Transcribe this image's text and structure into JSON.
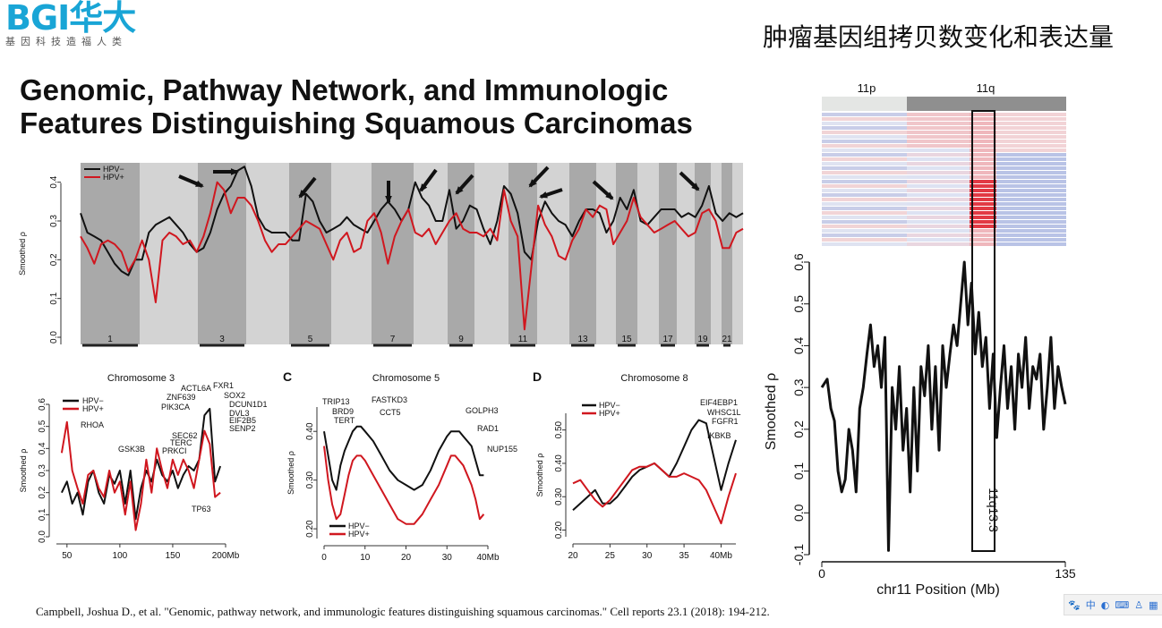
{
  "header": {
    "logo_text": "BGI华大",
    "logo_subtitle": "基因科技造福人类",
    "slide_title": "肿瘤基因组拷贝数变化和表达量"
  },
  "paper_title_line1": "Genomic, Pathway Network, and Immunologic",
  "paper_title_line2": "Features Distinguishing Squamous Carcinomas",
  "citation": "Campbell, Joshua D., et al. \"Genomic, pathway network, and immunologic features distinguishing squamous carcinomas.\" Cell reports 23.1 (2018): 194-212.",
  "tray_icons": [
    "paw-icon",
    "中",
    "moon-icon",
    "keyboard-icon",
    "shirt-icon",
    "person-icon",
    "grid-icon"
  ],
  "colors": {
    "hpv_neg": "#111111",
    "hpv_pos": "#d0171f",
    "band_dark": "#a9a9a9",
    "band_light": "#d3d3d3"
  },
  "chart_data": [
    {
      "type": "line",
      "panel": "A",
      "ylabel": "Smoothed ρ",
      "ylim": [
        0,
        0.45
      ],
      "yticks": [
        "0.0",
        "0.1",
        "0.2",
        "0.3",
        "0.4"
      ],
      "chromosome_labels": [
        "1",
        "3",
        "5",
        "7",
        "9",
        "11",
        "13",
        "15",
        "17",
        "19",
        "21"
      ],
      "legend": [
        "HPV−",
        "HPV+"
      ],
      "series": [
        {
          "name": "HPV−",
          "values": [
            0.32,
            0.27,
            0.26,
            0.25,
            0.22,
            0.19,
            0.17,
            0.16,
            0.2,
            0.2,
            0.27,
            0.29,
            0.3,
            0.31,
            0.29,
            0.27,
            0.24,
            0.22,
            0.23,
            0.27,
            0.33,
            0.37,
            0.39,
            0.43,
            0.44,
            0.39,
            0.31,
            0.28,
            0.27,
            0.27,
            0.27,
            0.25,
            0.25,
            0.37,
            0.35,
            0.3,
            0.27,
            0.28,
            0.29,
            0.31,
            0.29,
            0.28,
            0.27,
            0.3,
            0.33,
            0.35,
            0.33,
            0.3,
            0.33,
            0.4,
            0.36,
            0.34,
            0.3,
            0.3,
            0.38,
            0.28,
            0.3,
            0.34,
            0.33,
            0.28,
            0.24,
            0.3,
            0.39,
            0.37,
            0.32,
            0.22,
            0.2,
            0.3,
            0.35,
            0.32,
            0.3,
            0.29,
            0.26,
            0.3,
            0.33,
            0.33,
            0.32,
            0.27,
            0.3,
            0.36,
            0.33,
            0.38,
            0.3,
            0.29,
            0.31,
            0.33,
            0.33,
            0.33,
            0.31,
            0.32,
            0.31,
            0.34,
            0.39,
            0.32,
            0.3,
            0.32,
            0.31,
            0.32
          ]
        },
        {
          "name": "HPV+",
          "values": [
            0.26,
            0.23,
            0.19,
            0.24,
            0.25,
            0.24,
            0.22,
            0.17,
            0.2,
            0.25,
            0.2,
            0.09,
            0.25,
            0.27,
            0.26,
            0.24,
            0.25,
            0.22,
            0.26,
            0.32,
            0.4,
            0.38,
            0.32,
            0.36,
            0.36,
            0.34,
            0.3,
            0.25,
            0.22,
            0.24,
            0.24,
            0.26,
            0.28,
            0.3,
            0.29,
            0.28,
            0.24,
            0.2,
            0.25,
            0.27,
            0.22,
            0.23,
            0.3,
            0.32,
            0.27,
            0.19,
            0.26,
            0.3,
            0.33,
            0.27,
            0.26,
            0.28,
            0.24,
            0.27,
            0.3,
            0.32,
            0.28,
            0.27,
            0.27,
            0.26,
            0.28,
            0.25,
            0.38,
            0.3,
            0.26,
            0.02,
            0.18,
            0.34,
            0.29,
            0.26,
            0.21,
            0.2,
            0.25,
            0.28,
            0.33,
            0.31,
            0.34,
            0.33,
            0.24,
            0.27,
            0.3,
            0.36,
            0.31,
            0.29,
            0.27,
            0.28,
            0.29,
            0.3,
            0.28,
            0.26,
            0.27,
            0.32,
            0.33,
            0.3,
            0.23,
            0.23,
            0.27,
            0.28
          ]
        }
      ]
    },
    {
      "type": "line",
      "panel": "B",
      "title": "Chromosome 3",
      "ylabel": "Smoothed ρ",
      "ylim": [
        0,
        0.6
      ],
      "yticks": [
        "0.0",
        "0.1",
        "0.2",
        "0.3",
        "0.4",
        "0.5",
        "0.6"
      ],
      "xticks": [
        "50",
        "100",
        "150",
        "200Mb"
      ],
      "legend": [
        "HPV−",
        "HPV+"
      ],
      "annotations": [
        "RHOA",
        "GSK3B",
        "ACTL6A",
        "FXR1",
        "ZNF639",
        "SOX2",
        "PIK3CA",
        "DCUN1D1",
        "DVL3",
        "EIF2B5",
        "SENP2",
        "SEC62",
        "TERC",
        "PRKCI",
        "TP63"
      ],
      "series": [
        {
          "name": "HPV−",
          "x": [
            45,
            50,
            55,
            60,
            65,
            70,
            75,
            80,
            85,
            90,
            95,
            100,
            105,
            110,
            115,
            120,
            125,
            130,
            135,
            140,
            145,
            150,
            155,
            160,
            165,
            170,
            175,
            180,
            185,
            190,
            195
          ],
          "values": [
            0.2,
            0.25,
            0.15,
            0.2,
            0.1,
            0.25,
            0.3,
            0.2,
            0.15,
            0.28,
            0.24,
            0.3,
            0.15,
            0.3,
            0.08,
            0.22,
            0.3,
            0.25,
            0.35,
            0.28,
            0.25,
            0.3,
            0.22,
            0.28,
            0.32,
            0.3,
            0.35,
            0.55,
            0.58,
            0.25,
            0.32
          ]
        },
        {
          "name": "HPV+",
          "x": [
            45,
            50,
            55,
            60,
            65,
            70,
            75,
            80,
            85,
            90,
            95,
            100,
            105,
            110,
            115,
            120,
            125,
            130,
            135,
            140,
            145,
            150,
            155,
            160,
            165,
            170,
            175,
            180,
            185,
            190,
            195
          ],
          "values": [
            0.38,
            0.52,
            0.3,
            0.22,
            0.15,
            0.28,
            0.3,
            0.22,
            0.18,
            0.3,
            0.2,
            0.25,
            0.1,
            0.25,
            0.03,
            0.15,
            0.35,
            0.2,
            0.4,
            0.3,
            0.22,
            0.35,
            0.28,
            0.35,
            0.3,
            0.22,
            0.35,
            0.48,
            0.42,
            0.18,
            0.2
          ]
        }
      ]
    },
    {
      "type": "line",
      "panel": "C",
      "title": "Chromosome 5",
      "ylabel": "Smoothed ρ",
      "ylim": [
        0.18,
        0.45
      ],
      "yticks": [
        "0.20",
        "0.30",
        "0.40"
      ],
      "xticks": [
        "0",
        "10",
        "20",
        "30",
        "40Mb"
      ],
      "legend": [
        "HPV−",
        "HPV+"
      ],
      "annotations": [
        "TRIP13",
        "BRD9",
        "TERT",
        "FASTKD3",
        "CCT5",
        "GOLPH3",
        "RAD1",
        "NUP155"
      ],
      "series": [
        {
          "name": "HPV−",
          "x": [
            0,
            1,
            2,
            3,
            4,
            5,
            6,
            7,
            8,
            9,
            10,
            12,
            14,
            16,
            18,
            20,
            22,
            24,
            26,
            28,
            30,
            31,
            32,
            33,
            34,
            35,
            36,
            37,
            38,
            39
          ],
          "values": [
            0.4,
            0.35,
            0.3,
            0.28,
            0.33,
            0.36,
            0.38,
            0.4,
            0.41,
            0.41,
            0.4,
            0.38,
            0.35,
            0.32,
            0.3,
            0.29,
            0.28,
            0.29,
            0.32,
            0.36,
            0.39,
            0.4,
            0.4,
            0.4,
            0.39,
            0.38,
            0.37,
            0.34,
            0.31,
            0.31
          ]
        },
        {
          "name": "HPV+",
          "x": [
            0,
            1,
            2,
            3,
            4,
            5,
            6,
            7,
            8,
            9,
            10,
            12,
            14,
            16,
            18,
            20,
            22,
            24,
            26,
            28,
            30,
            31,
            32,
            33,
            34,
            35,
            36,
            37,
            38,
            39
          ],
          "values": [
            0.37,
            0.3,
            0.25,
            0.22,
            0.23,
            0.27,
            0.31,
            0.34,
            0.35,
            0.35,
            0.34,
            0.31,
            0.28,
            0.25,
            0.22,
            0.21,
            0.21,
            0.23,
            0.26,
            0.29,
            0.33,
            0.35,
            0.35,
            0.34,
            0.33,
            0.31,
            0.29,
            0.26,
            0.22,
            0.23
          ]
        }
      ]
    },
    {
      "type": "line",
      "panel": "D",
      "title": "Chromosome 8",
      "ylabel": "Smoothed ρ",
      "ylim": [
        0.18,
        0.55
      ],
      "yticks": [
        "0.20",
        "0.30",
        "0.40",
        "0.50"
      ],
      "xticks": [
        "20",
        "25",
        "30",
        "35",
        "40Mb"
      ],
      "legend": [
        "HPV−",
        "HPV+"
      ],
      "annotations": [
        "EIF4EBP1",
        "WHSC1L",
        "FGFR1",
        "IKBKB"
      ],
      "series": [
        {
          "name": "HPV−",
          "x": [
            20,
            21,
            22,
            23,
            24,
            25,
            26,
            27,
            28,
            29,
            30,
            31,
            32,
            33,
            34,
            35,
            36,
            37,
            38,
            39,
            40,
            41,
            42
          ],
          "values": [
            0.26,
            0.28,
            0.3,
            0.32,
            0.28,
            0.28,
            0.3,
            0.33,
            0.36,
            0.38,
            0.39,
            0.4,
            0.38,
            0.36,
            0.4,
            0.45,
            0.5,
            0.53,
            0.52,
            0.42,
            0.32,
            0.4,
            0.47
          ]
        },
        {
          "name": "HPV+",
          "x": [
            20,
            21,
            22,
            23,
            24,
            25,
            26,
            27,
            28,
            29,
            30,
            31,
            32,
            33,
            34,
            35,
            36,
            37,
            38,
            39,
            40,
            41,
            42
          ],
          "values": [
            0.34,
            0.35,
            0.32,
            0.29,
            0.27,
            0.29,
            0.32,
            0.35,
            0.38,
            0.39,
            0.39,
            0.4,
            0.38,
            0.36,
            0.36,
            0.37,
            0.36,
            0.35,
            0.32,
            0.27,
            0.22,
            0.3,
            0.37
          ]
        }
      ]
    },
    {
      "type": "line",
      "panel": "chr11",
      "ylabel": "Smoothed ρ",
      "xlabel": "chr11 Position (Mb)",
      "ylim": [
        -0.1,
        0.6
      ],
      "yticks": [
        "-0.1",
        "0.0",
        "0.1",
        "0.2",
        "0.3",
        "0.4",
        "0.5",
        "0.6"
      ],
      "xticks": [
        "0",
        "135"
      ],
      "arm_labels": [
        "11p",
        "11q"
      ],
      "band_label": "11q13.3",
      "series": [
        {
          "name": "chr11",
          "x": [
            0,
            3,
            5,
            7,
            9,
            11,
            13,
            15,
            17,
            19,
            21,
            23,
            25,
            27,
            29,
            31,
            33,
            35,
            37,
            39,
            41,
            43,
            45,
            47,
            49,
            51,
            53,
            55,
            57,
            59,
            61,
            63,
            65,
            67,
            69,
            71,
            73,
            75,
            77,
            79,
            81,
            83,
            85,
            87,
            89,
            91,
            93,
            95,
            97,
            99,
            101,
            103,
            105,
            107,
            109,
            111,
            113,
            115,
            117,
            119,
            121,
            123,
            125,
            127,
            129,
            131,
            133,
            135
          ],
          "values": [
            0.3,
            0.32,
            0.25,
            0.22,
            0.1,
            0.05,
            0.08,
            0.2,
            0.15,
            0.05,
            0.25,
            0.3,
            0.38,
            0.45,
            0.35,
            0.4,
            0.3,
            0.42,
            -0.09,
            0.3,
            0.2,
            0.35,
            0.15,
            0.25,
            0.05,
            0.3,
            0.1,
            0.35,
            0.28,
            0.4,
            0.2,
            0.35,
            0.15,
            0.4,
            0.3,
            0.38,
            0.45,
            0.4,
            0.5,
            0.6,
            0.45,
            0.55,
            0.38,
            0.48,
            0.35,
            0.42,
            0.25,
            0.38,
            0.18,
            0.3,
            0.4,
            0.25,
            0.35,
            0.2,
            0.38,
            0.3,
            0.42,
            0.25,
            0.35,
            0.32,
            0.38,
            0.2,
            0.3,
            0.42,
            0.25,
            0.35,
            0.3,
            0.26
          ]
        }
      ]
    }
  ]
}
